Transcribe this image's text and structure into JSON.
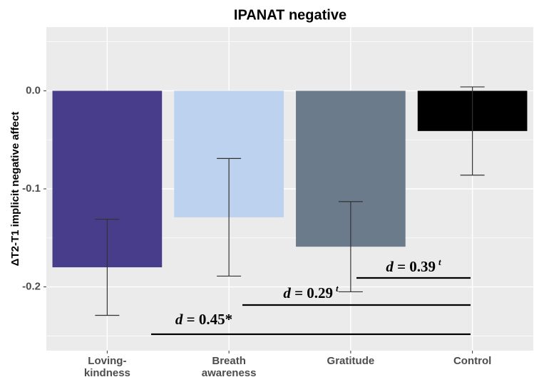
{
  "chart_data": {
    "type": "bar",
    "title": "IPANAT negative",
    "y_label": "ΔT2-T1 implicit negative affect",
    "categories": [
      "Loving-\nkindness",
      "Breath\nawareness",
      "Gratitude",
      "Control"
    ],
    "values": [
      -0.18,
      -0.129,
      -0.159,
      -0.041
    ],
    "errors": [
      0.049,
      0.06,
      0.046,
      0.045
    ],
    "colors": [
      "#483d8b",
      "#bcd2ee",
      "#6c7b8b",
      "#000000"
    ],
    "ylim": [
      -0.265,
      0.065
    ],
    "yticks": [
      {
        "value": 0,
        "label": "0.0"
      },
      -0.1,
      -0.2
    ],
    "grid": true,
    "annotations": [
      {
        "text": "d = 0.45*"
      },
      {
        "text": "d = 0.29",
        "superscript": "t"
      },
      {
        "text": "d = 0.39",
        "superscript": "t"
      }
    ]
  }
}
